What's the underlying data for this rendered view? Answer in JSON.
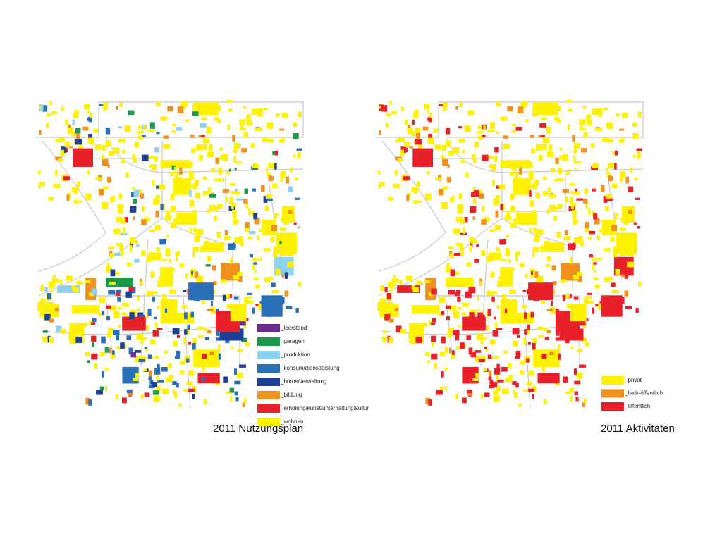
{
  "maps": [
    {
      "title": "2011 Nutzungsplan",
      "legend": [
        {
          "label": "_leerstand",
          "color": "#6b2c91"
        },
        {
          "label": "_garagen",
          "color": "#1a9a48"
        },
        {
          "label": "_produktion",
          "color": "#8fd3f4"
        },
        {
          "label": "_konsum/dienstleistung",
          "color": "#2a70b8"
        },
        {
          "label": "_büros/verwaltung",
          "color": "#1d3f94"
        },
        {
          "label": "_bildung",
          "color": "#f0901e"
        },
        {
          "label": "_erholung/kunst/unterhaltung/kultur",
          "color": "#e8202a"
        },
        {
          "label": "_wohnen",
          "color": "#fff200"
        }
      ]
    },
    {
      "title": "2011 Aktivitäten",
      "legend": [
        {
          "label": "_privat",
          "color": "#fff200"
        },
        {
          "label": "_halb-öffentlich",
          "color": "#f0901e"
        },
        {
          "label": "_öffentlich",
          "color": "#e8202a"
        }
      ]
    }
  ]
}
